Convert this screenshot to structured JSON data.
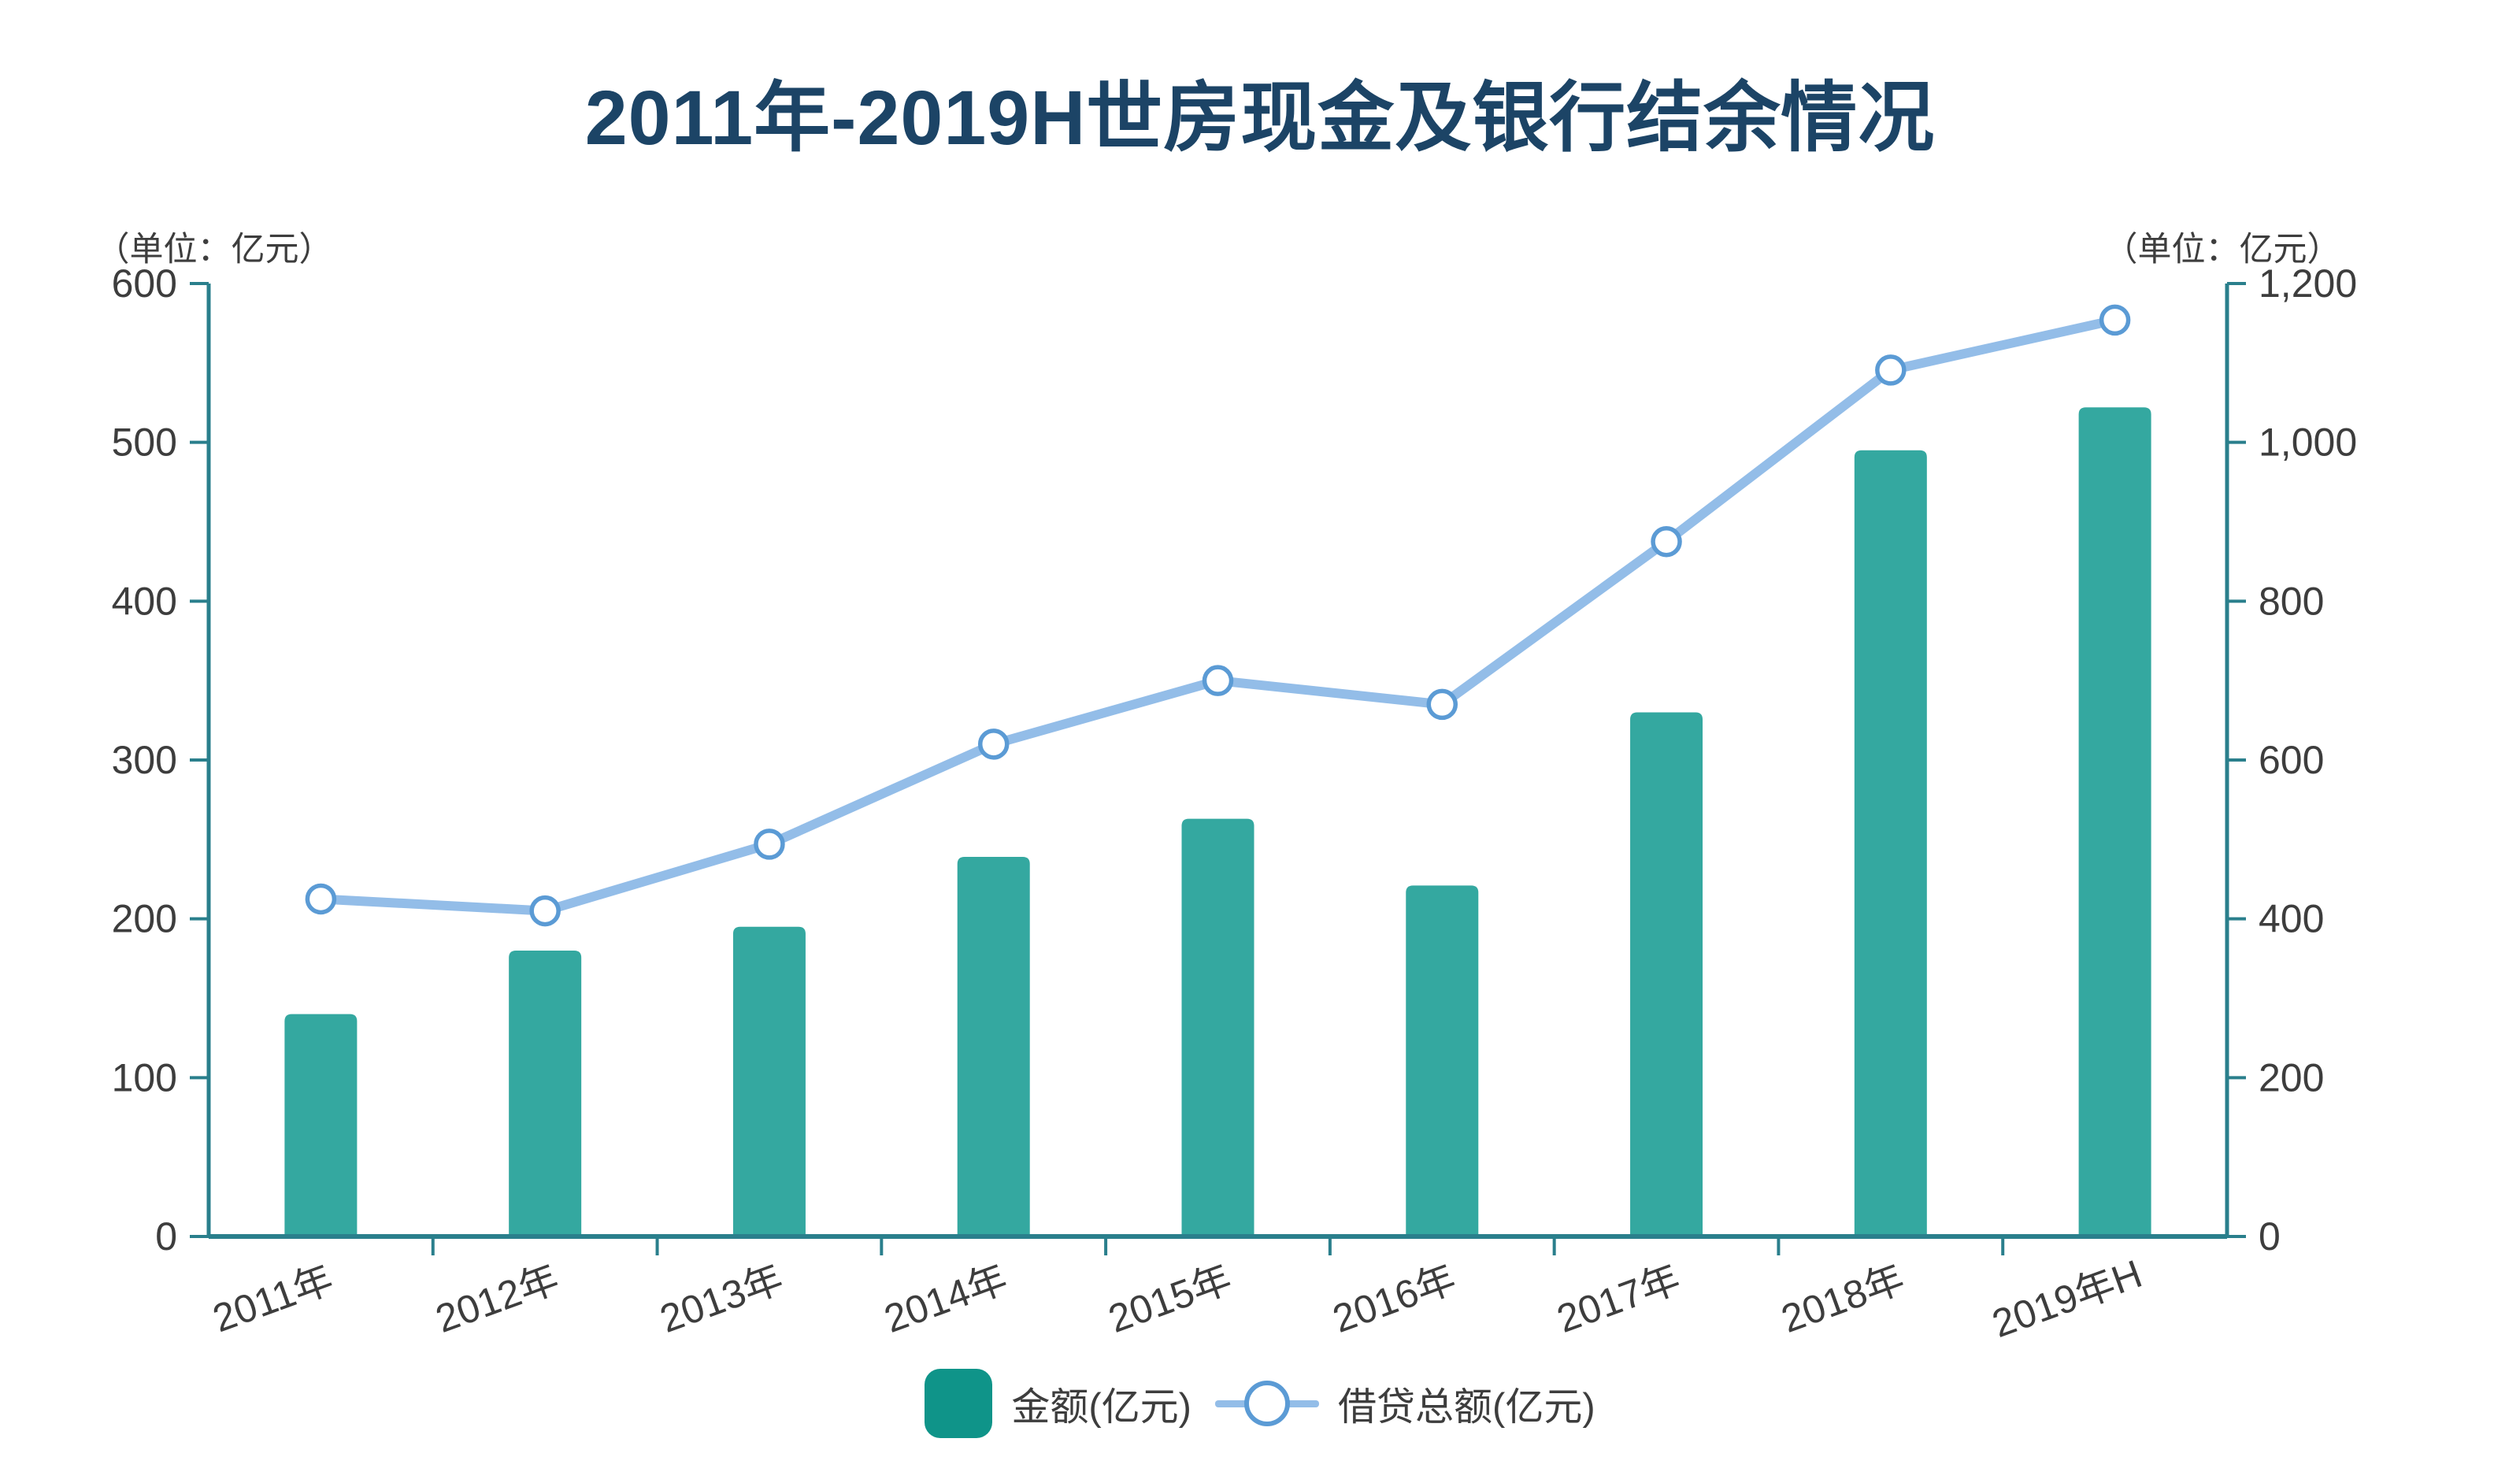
{
  "title": "2011年-2019H世房现金及银行结余情况",
  "left_axis": {
    "unit": "（单位：亿元）",
    "tick_labels": [
      "600",
      "500",
      "400",
      "300",
      "200",
      "100",
      "0"
    ],
    "min": 0,
    "max": 600,
    "step": 100
  },
  "right_axis": {
    "unit": "（单位：亿元）",
    "tick_labels": [
      "1,200",
      "1,000",
      "800",
      "600",
      "400",
      "200",
      "0"
    ],
    "min": 0,
    "max": 1200,
    "step": 200
  },
  "legend": {
    "items": [
      {
        "label": "金额(亿元)",
        "marker": "bar-swatch"
      },
      {
        "label": "借贷总额(亿元)",
        "marker": "line-circle"
      }
    ]
  },
  "chart_data": {
    "type": "bar+line combo with dual y-axes",
    "categories": [
      "2011年",
      "2012年",
      "2013年",
      "2014年",
      "2015年",
      "2016年",
      "2017年",
      "2018年",
      "2019年H"
    ],
    "series": [
      {
        "name": "金额(亿元)",
        "type": "bar",
        "axis": "left",
        "values": [
          140,
          180,
          195,
          239,
          263,
          221,
          330,
          495,
          522
        ]
      },
      {
        "name": "借贷总额(亿元)",
        "type": "line",
        "axis": "right",
        "values": [
          425,
          410,
          494,
          620,
          700,
          670,
          875,
          1091,
          1154
        ]
      }
    ],
    "left_ylim": [
      0,
      600
    ],
    "right_ylim": [
      0,
      1200
    ],
    "grid": false,
    "legend_position": "bottom-center",
    "x_label_rotation_deg": -20
  },
  "colors": {
    "background": "#ffffff",
    "title": "#1c4466",
    "text": "#3d3d3d",
    "axis": "#2a7f8c",
    "bar": "#34a8a0",
    "legend_bar_swatch": "#0f9489",
    "line": "#93bde8",
    "marker_stroke": "#5b9bd5",
    "marker_fill": "#ffffff"
  }
}
